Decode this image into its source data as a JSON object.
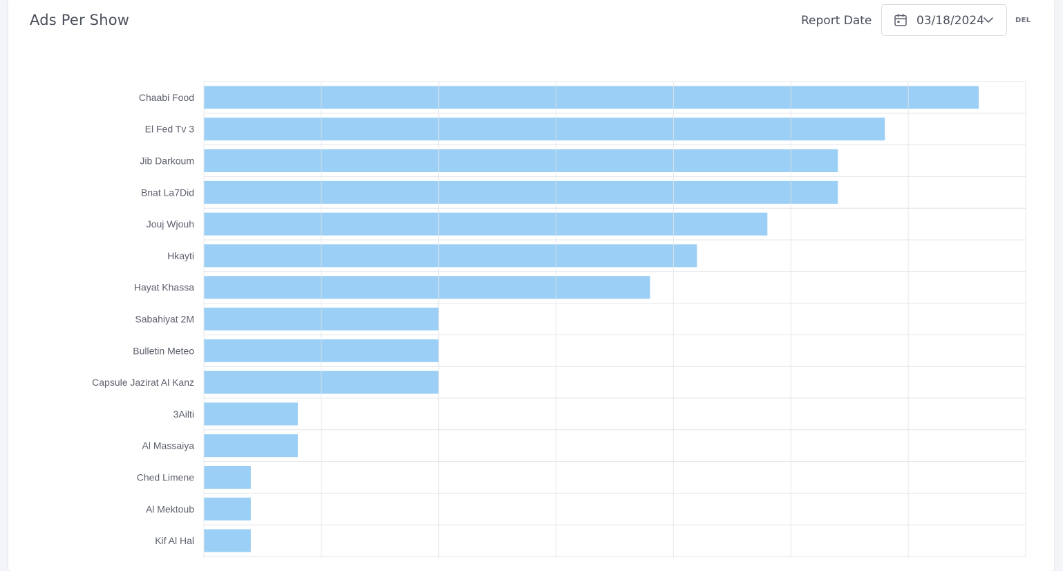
{
  "header": {
    "title": "Ads Per Show",
    "report_date_label": "Report Date",
    "date_value": "03/18/2024",
    "del_label": "DEL"
  },
  "icons": {
    "calendar": "calendar-icon",
    "chevron": "chevron-down-icon"
  },
  "colors": {
    "bar": "#9bcff5",
    "grid": "#e3e4e8"
  },
  "chart_data": {
    "type": "bar",
    "orientation": "horizontal",
    "categories": [
      "Chaabi Food",
      "El Fed Tv 3",
      "Jib Darkoum",
      "Bnat La7Did",
      "Jouj Wjouh",
      "Hkayti",
      "Hayat Khassa",
      "Sabahiyat 2M",
      "Bulletin Meteo",
      "Capsule Jazirat Al Kanz",
      "3Ailti",
      "Al Massaiya",
      "Ched Limene",
      "Al Mektoub",
      "Kif Al Hal"
    ],
    "values": [
      33,
      29,
      27,
      27,
      24,
      21,
      19,
      10,
      10,
      10,
      4,
      4,
      2,
      2,
      2
    ],
    "xlim": [
      0,
      35
    ],
    "x_gridlines": [
      0,
      5,
      10,
      15,
      20,
      25,
      30,
      35
    ],
    "grid": true
  }
}
